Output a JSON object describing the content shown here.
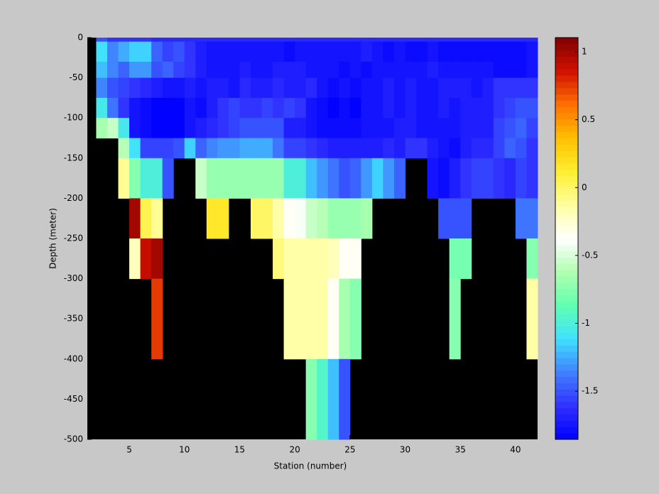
{
  "chart_data": {
    "type": "heatmap",
    "xlabel": "Station (number)",
    "ylabel": "Depth (meter)",
    "x_edges": [
      2,
      3,
      4,
      5,
      6,
      7,
      8,
      9,
      10,
      11,
      12,
      13,
      14,
      15,
      16,
      17,
      18,
      19,
      20,
      21,
      22,
      23,
      24,
      25,
      26,
      27,
      28,
      29,
      30,
      31,
      32,
      33,
      34,
      35,
      36,
      37,
      38,
      39,
      40,
      41,
      42
    ],
    "y_edges": [
      0,
      -5,
      -30,
      -50,
      -75,
      -100,
      -125,
      -150,
      -200,
      -250,
      -300,
      -400,
      -500
    ],
    "z": [
      [
        -1.5,
        -1.6,
        -1.6,
        -1.6,
        -1.6,
        -1.65,
        -1.65,
        -1.65,
        -1.65,
        -1.65,
        -1.65,
        -1.65,
        -1.65,
        -1.65,
        -1.65,
        -1.65,
        -1.65,
        -1.65,
        -1.65,
        -1.65,
        -1.65,
        -1.65,
        -1.65,
        -1.65,
        -1.65,
        -1.65,
        -1.65,
        -1.65,
        -1.65,
        -1.65,
        -1.65,
        -1.65,
        -1.65,
        -1.65,
        -1.65,
        -1.65,
        -1.65,
        -1.65,
        -1.65,
        -1.65
      ],
      [
        -1.1,
        -1.35,
        -1.25,
        -1.15,
        -1.15,
        -1.45,
        -1.55,
        -1.5,
        -1.6,
        -1.7,
        -1.75,
        -1.75,
        -1.75,
        -1.75,
        -1.75,
        -1.75,
        -1.75,
        -1.8,
        -1.75,
        -1.75,
        -1.75,
        -1.75,
        -1.75,
        -1.75,
        -1.7,
        -1.75,
        -1.8,
        -1.75,
        -1.8,
        -1.8,
        -1.75,
        -1.8,
        -1.8,
        -1.8,
        -1.8,
        -1.8,
        -1.8,
        -1.8,
        -1.8,
        -1.75
      ],
      [
        -1.2,
        -1.35,
        -1.45,
        -1.3,
        -1.3,
        -1.5,
        -1.45,
        -1.55,
        -1.6,
        -1.7,
        -1.75,
        -1.75,
        -1.75,
        -1.7,
        -1.75,
        -1.75,
        -1.7,
        -1.7,
        -1.7,
        -1.75,
        -1.75,
        -1.75,
        -1.8,
        -1.75,
        -1.8,
        -1.75,
        -1.75,
        -1.75,
        -1.75,
        -1.75,
        -1.7,
        -1.75,
        -1.75,
        -1.75,
        -1.75,
        -1.75,
        -1.8,
        -1.8,
        -1.8,
        -1.75
      ],
      [
        -1.35,
        -1.5,
        -1.55,
        -1.6,
        -1.65,
        -1.7,
        -1.75,
        -1.75,
        -1.7,
        -1.75,
        -1.7,
        -1.7,
        -1.75,
        -1.65,
        -1.7,
        -1.7,
        -1.65,
        -1.7,
        -1.7,
        -1.65,
        -1.75,
        -1.8,
        -1.75,
        -1.8,
        -1.75,
        -1.75,
        -1.7,
        -1.75,
        -1.7,
        -1.75,
        -1.75,
        -1.7,
        -1.7,
        -1.7,
        -1.75,
        -1.7,
        -1.6,
        -1.6,
        -1.6,
        -1.6
      ],
      [
        -1.05,
        -1.4,
        -1.6,
        -1.75,
        -1.8,
        -1.85,
        -1.85,
        -1.85,
        -1.75,
        -1.8,
        -1.7,
        -1.6,
        -1.55,
        -1.6,
        -1.6,
        -1.55,
        -1.6,
        -1.55,
        -1.6,
        -1.75,
        -1.8,
        -1.85,
        -1.8,
        -1.85,
        -1.75,
        -1.75,
        -1.7,
        -1.75,
        -1.7,
        -1.75,
        -1.75,
        -1.7,
        -1.75,
        -1.7,
        -1.7,
        -1.7,
        -1.6,
        -1.55,
        -1.5,
        -1.5
      ],
      [
        -0.65,
        -0.55,
        -1.05,
        -1.75,
        -1.8,
        -1.85,
        -1.85,
        -1.85,
        -1.75,
        -1.7,
        -1.65,
        -1.6,
        -1.55,
        -1.5,
        -1.5,
        -1.5,
        -1.5,
        -1.7,
        -1.7,
        -1.75,
        -1.8,
        -1.8,
        -1.8,
        -1.8,
        -1.75,
        -1.75,
        -1.75,
        -1.7,
        -1.7,
        -1.75,
        -1.75,
        -1.75,
        -1.75,
        -1.7,
        -1.7,
        -1.7,
        -1.55,
        -1.5,
        -1.45,
        -1.55
      ],
      [
        null,
        null,
        -0.6,
        -1.1,
        -1.55,
        -1.55,
        -1.55,
        -1.5,
        -1.15,
        -1.45,
        -1.35,
        -1.3,
        -1.3,
        -1.25,
        -1.25,
        -1.25,
        -1.4,
        -1.55,
        -1.55,
        -1.6,
        -1.65,
        -1.7,
        -1.7,
        -1.7,
        -1.7,
        -1.7,
        -1.65,
        -1.7,
        -1.6,
        -1.6,
        -1.7,
        -1.75,
        -1.8,
        -1.7,
        -1.65,
        -1.65,
        -1.55,
        -1.45,
        -1.5,
        -1.6
      ],
      [
        null,
        null,
        -0.1,
        -0.75,
        -1.0,
        -1.0,
        -1.5,
        null,
        null,
        -0.55,
        -0.7,
        -0.7,
        -0.7,
        -0.7,
        -0.7,
        -0.7,
        -0.7,
        -1.0,
        -1.0,
        -1.2,
        -1.3,
        -1.4,
        -1.5,
        -1.45,
        -1.3,
        -1.15,
        -1.3,
        -1.45,
        null,
        null,
        -1.75,
        -1.8,
        -1.7,
        -1.6,
        -1.55,
        -1.55,
        -1.6,
        -1.65,
        -1.55,
        -1.6
      ],
      [
        null,
        null,
        null,
        1.0,
        0.05,
        -0.1,
        null,
        null,
        null,
        null,
        0.15,
        0.15,
        null,
        null,
        0.0,
        0.0,
        -0.15,
        -0.35,
        -0.4,
        -0.55,
        -0.6,
        -0.7,
        -0.7,
        -0.7,
        -0.65,
        null,
        null,
        null,
        null,
        null,
        null,
        -1.5,
        -1.5,
        -1.5,
        null,
        null,
        null,
        null,
        -1.4,
        -1.4
      ],
      [
        null,
        null,
        null,
        -0.2,
        0.9,
        1.0,
        null,
        null,
        null,
        null,
        null,
        null,
        null,
        null,
        null,
        null,
        -0.05,
        -0.15,
        -0.15,
        -0.15,
        -0.15,
        -0.2,
        -0.35,
        -0.35,
        null,
        null,
        null,
        null,
        null,
        null,
        null,
        null,
        -0.8,
        -0.8,
        null,
        null,
        null,
        null,
        null,
        -0.75
      ],
      [
        null,
        null,
        null,
        null,
        null,
        0.75,
        null,
        null,
        null,
        null,
        null,
        null,
        null,
        null,
        null,
        null,
        null,
        -0.15,
        -0.15,
        -0.15,
        -0.15,
        -0.35,
        -0.65,
        -0.75,
        null,
        null,
        null,
        null,
        null,
        null,
        null,
        null,
        -0.75,
        null,
        null,
        null,
        null,
        null,
        null,
        -0.15
      ],
      [
        null,
        null,
        null,
        null,
        null,
        null,
        null,
        null,
        null,
        null,
        null,
        null,
        null,
        null,
        null,
        null,
        null,
        null,
        null,
        -0.75,
        -0.95,
        -1.2,
        -1.5,
        null,
        null,
        null,
        null,
        null,
        null,
        null,
        null,
        null,
        null,
        null,
        null,
        null,
        null,
        null,
        null,
        null
      ]
    ],
    "xlim": [
      1.2,
      42
    ],
    "ylim": [
      -500,
      0
    ],
    "xticks": [
      5,
      10,
      15,
      20,
      25,
      30,
      35,
      40
    ],
    "yticks": [
      0,
      -50,
      -100,
      -150,
      -200,
      -250,
      -300,
      -350,
      -400,
      -450,
      -500
    ],
    "clim": [
      -1.855,
      1.105
    ],
    "cticks": [
      1,
      0.5,
      0,
      -0.5,
      -1,
      -1.5
    ],
    "colormap": [
      "#0000ff",
      "#3030ff",
      "#4080ff",
      "#40e0ff",
      "#60ffb0",
      "#b0ffb0",
      "#ffffff",
      "#ffffa0",
      "#ffee30",
      "#ffc000",
      "#ff7000",
      "#d01000",
      "#800000"
    ],
    "missing_color": "#000000"
  }
}
